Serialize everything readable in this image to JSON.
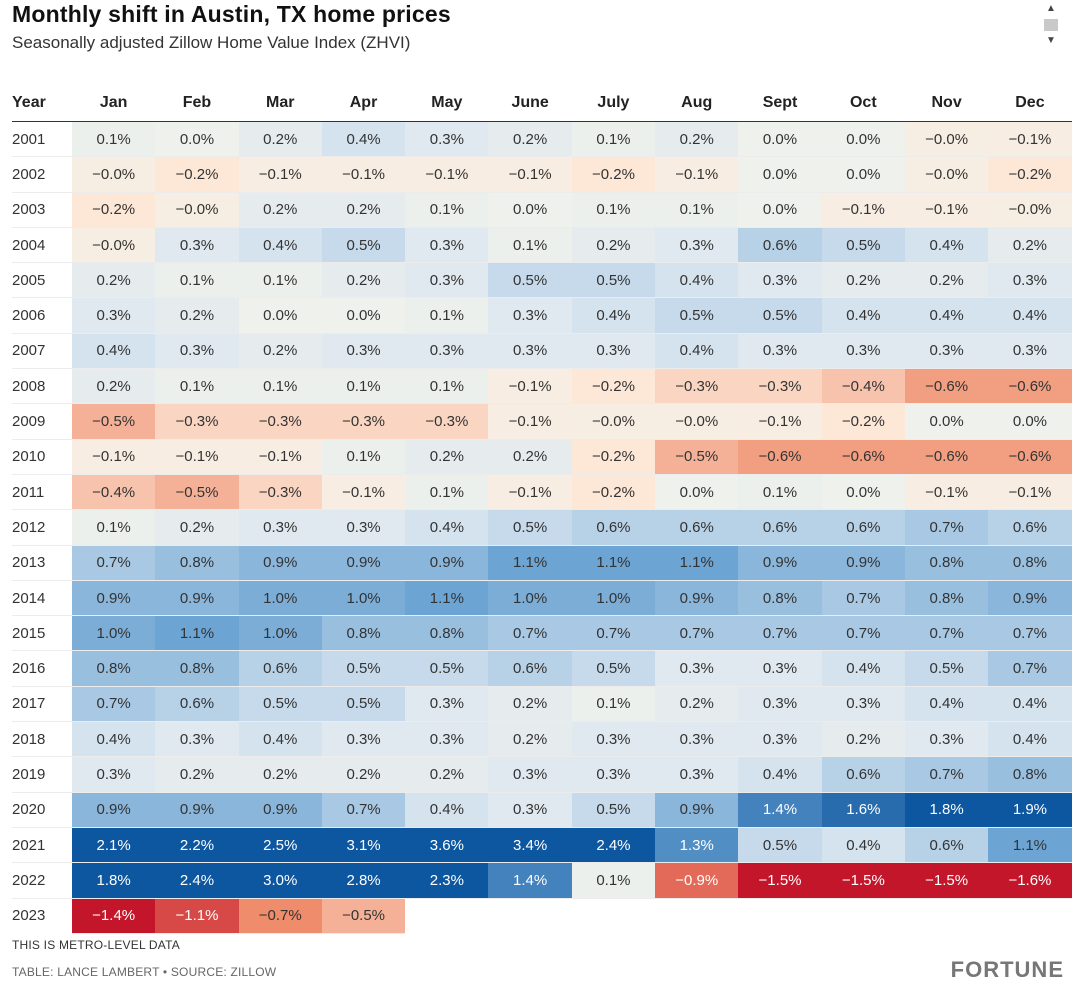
{
  "title": "Monthly shift in Austin, TX home prices",
  "subtitle": "Seasonally adjusted Zillow Home Value Index (ZHVI)",
  "footnote": "THIS IS METRO-LEVEL DATA",
  "source": "TABLE: LANCE LAMBERT • SOURCE: ZILLOW",
  "brand": "FORTUNE",
  "chart_data": {
    "type": "heatmap",
    "title": "Monthly shift in Austin, TX home prices",
    "subtitle": "Seasonally adjusted Zillow Home Value Index (ZHVI)",
    "row_header": "Year",
    "columns": [
      "Jan",
      "Feb",
      "Mar",
      "Apr",
      "May",
      "June",
      "July",
      "Aug",
      "Sept",
      "Oct",
      "Nov",
      "Dec"
    ],
    "rows": [
      {
        "year": "2001",
        "values": [
          "0.1%",
          "0.0%",
          "0.2%",
          "0.4%",
          "0.3%",
          "0.2%",
          "0.1%",
          "0.2%",
          "0.0%",
          "0.0%",
          "−0.0%",
          "−0.1%"
        ]
      },
      {
        "year": "2002",
        "values": [
          "−0.0%",
          "−0.2%",
          "−0.1%",
          "−0.1%",
          "−0.1%",
          "−0.1%",
          "−0.2%",
          "−0.1%",
          "0.0%",
          "0.0%",
          "−0.0%",
          "−0.2%"
        ]
      },
      {
        "year": "2003",
        "values": [
          "−0.2%",
          "−0.0%",
          "0.2%",
          "0.2%",
          "0.1%",
          "0.0%",
          "0.1%",
          "0.1%",
          "0.0%",
          "−0.1%",
          "−0.1%",
          "−0.0%"
        ]
      },
      {
        "year": "2004",
        "values": [
          "−0.0%",
          "0.3%",
          "0.4%",
          "0.5%",
          "0.3%",
          "0.1%",
          "0.2%",
          "0.3%",
          "0.6%",
          "0.5%",
          "0.4%",
          "0.2%"
        ]
      },
      {
        "year": "2005",
        "values": [
          "0.2%",
          "0.1%",
          "0.1%",
          "0.2%",
          "0.3%",
          "0.5%",
          "0.5%",
          "0.4%",
          "0.3%",
          "0.2%",
          "0.2%",
          "0.3%"
        ]
      },
      {
        "year": "2006",
        "values": [
          "0.3%",
          "0.2%",
          "0.0%",
          "0.0%",
          "0.1%",
          "0.3%",
          "0.4%",
          "0.5%",
          "0.5%",
          "0.4%",
          "0.4%",
          "0.4%"
        ]
      },
      {
        "year": "2007",
        "values": [
          "0.4%",
          "0.3%",
          "0.2%",
          "0.3%",
          "0.3%",
          "0.3%",
          "0.3%",
          "0.4%",
          "0.3%",
          "0.3%",
          "0.3%",
          "0.3%"
        ]
      },
      {
        "year": "2008",
        "values": [
          "0.2%",
          "0.1%",
          "0.1%",
          "0.1%",
          "0.1%",
          "−0.1%",
          "−0.2%",
          "−0.3%",
          "−0.3%",
          "−0.4%",
          "−0.6%",
          "−0.6%"
        ]
      },
      {
        "year": "2009",
        "values": [
          "−0.5%",
          "−0.3%",
          "−0.3%",
          "−0.3%",
          "−0.3%",
          "−0.1%",
          "−0.0%",
          "−0.0%",
          "−0.1%",
          "−0.2%",
          "0.0%",
          "0.0%"
        ]
      },
      {
        "year": "2010",
        "values": [
          "−0.1%",
          "−0.1%",
          "−0.1%",
          "0.1%",
          "0.2%",
          "0.2%",
          "−0.2%",
          "−0.5%",
          "−0.6%",
          "−0.6%",
          "−0.6%",
          "−0.6%"
        ]
      },
      {
        "year": "2011",
        "values": [
          "−0.4%",
          "−0.5%",
          "−0.3%",
          "−0.1%",
          "0.1%",
          "−0.1%",
          "−0.2%",
          "0.0%",
          "0.1%",
          "0.0%",
          "−0.1%",
          "−0.1%"
        ]
      },
      {
        "year": "2012",
        "values": [
          "0.1%",
          "0.2%",
          "0.3%",
          "0.3%",
          "0.4%",
          "0.5%",
          "0.6%",
          "0.6%",
          "0.6%",
          "0.6%",
          "0.7%",
          "0.6%"
        ]
      },
      {
        "year": "2013",
        "values": [
          "0.7%",
          "0.8%",
          "0.9%",
          "0.9%",
          "0.9%",
          "1.1%",
          "1.1%",
          "1.1%",
          "0.9%",
          "0.9%",
          "0.8%",
          "0.8%"
        ]
      },
      {
        "year": "2014",
        "values": [
          "0.9%",
          "0.9%",
          "1.0%",
          "1.0%",
          "1.1%",
          "1.0%",
          "1.0%",
          "0.9%",
          "0.8%",
          "0.7%",
          "0.8%",
          "0.9%"
        ]
      },
      {
        "year": "2015",
        "values": [
          "1.0%",
          "1.1%",
          "1.0%",
          "0.8%",
          "0.8%",
          "0.7%",
          "0.7%",
          "0.7%",
          "0.7%",
          "0.7%",
          "0.7%",
          "0.7%"
        ]
      },
      {
        "year": "2016",
        "values": [
          "0.8%",
          "0.8%",
          "0.6%",
          "0.5%",
          "0.5%",
          "0.6%",
          "0.5%",
          "0.3%",
          "0.3%",
          "0.4%",
          "0.5%",
          "0.7%"
        ]
      },
      {
        "year": "2017",
        "values": [
          "0.7%",
          "0.6%",
          "0.5%",
          "0.5%",
          "0.3%",
          "0.2%",
          "0.1%",
          "0.2%",
          "0.3%",
          "0.3%",
          "0.4%",
          "0.4%"
        ]
      },
      {
        "year": "2018",
        "values": [
          "0.4%",
          "0.3%",
          "0.4%",
          "0.3%",
          "0.3%",
          "0.2%",
          "0.3%",
          "0.3%",
          "0.3%",
          "0.2%",
          "0.3%",
          "0.4%"
        ]
      },
      {
        "year": "2019",
        "values": [
          "0.3%",
          "0.2%",
          "0.2%",
          "0.2%",
          "0.2%",
          "0.3%",
          "0.3%",
          "0.3%",
          "0.4%",
          "0.6%",
          "0.7%",
          "0.8%"
        ]
      },
      {
        "year": "2020",
        "values": [
          "0.9%",
          "0.9%",
          "0.9%",
          "0.7%",
          "0.4%",
          "0.3%",
          "0.5%",
          "0.9%",
          "1.4%",
          "1.6%",
          "1.8%",
          "1.9%"
        ]
      },
      {
        "year": "2021",
        "values": [
          "2.1%",
          "2.2%",
          "2.5%",
          "3.1%",
          "3.6%",
          "3.4%",
          "2.4%",
          "1.3%",
          "0.5%",
          "0.4%",
          "0.6%",
          "1.1%"
        ]
      },
      {
        "year": "2022",
        "values": [
          "1.8%",
          "2.4%",
          "3.0%",
          "2.8%",
          "2.3%",
          "1.4%",
          "0.1%",
          "−0.9%",
          "−1.5%",
          "−1.5%",
          "−1.5%",
          "−1.6%"
        ]
      },
      {
        "year": "2023",
        "values": [
          "−1.4%",
          "−1.1%",
          "−0.7%",
          "−0.5%"
        ]
      }
    ],
    "colors": {
      "negative_strong": "#c4162a",
      "negative_mid": "#ef8c6b",
      "negative_light": "#fde6d6",
      "neutral": "#f3f3ec",
      "positive_light": "#dbe7f0",
      "positive_mid": "#6fa6d4",
      "positive_strong": "#0d56a0"
    }
  }
}
